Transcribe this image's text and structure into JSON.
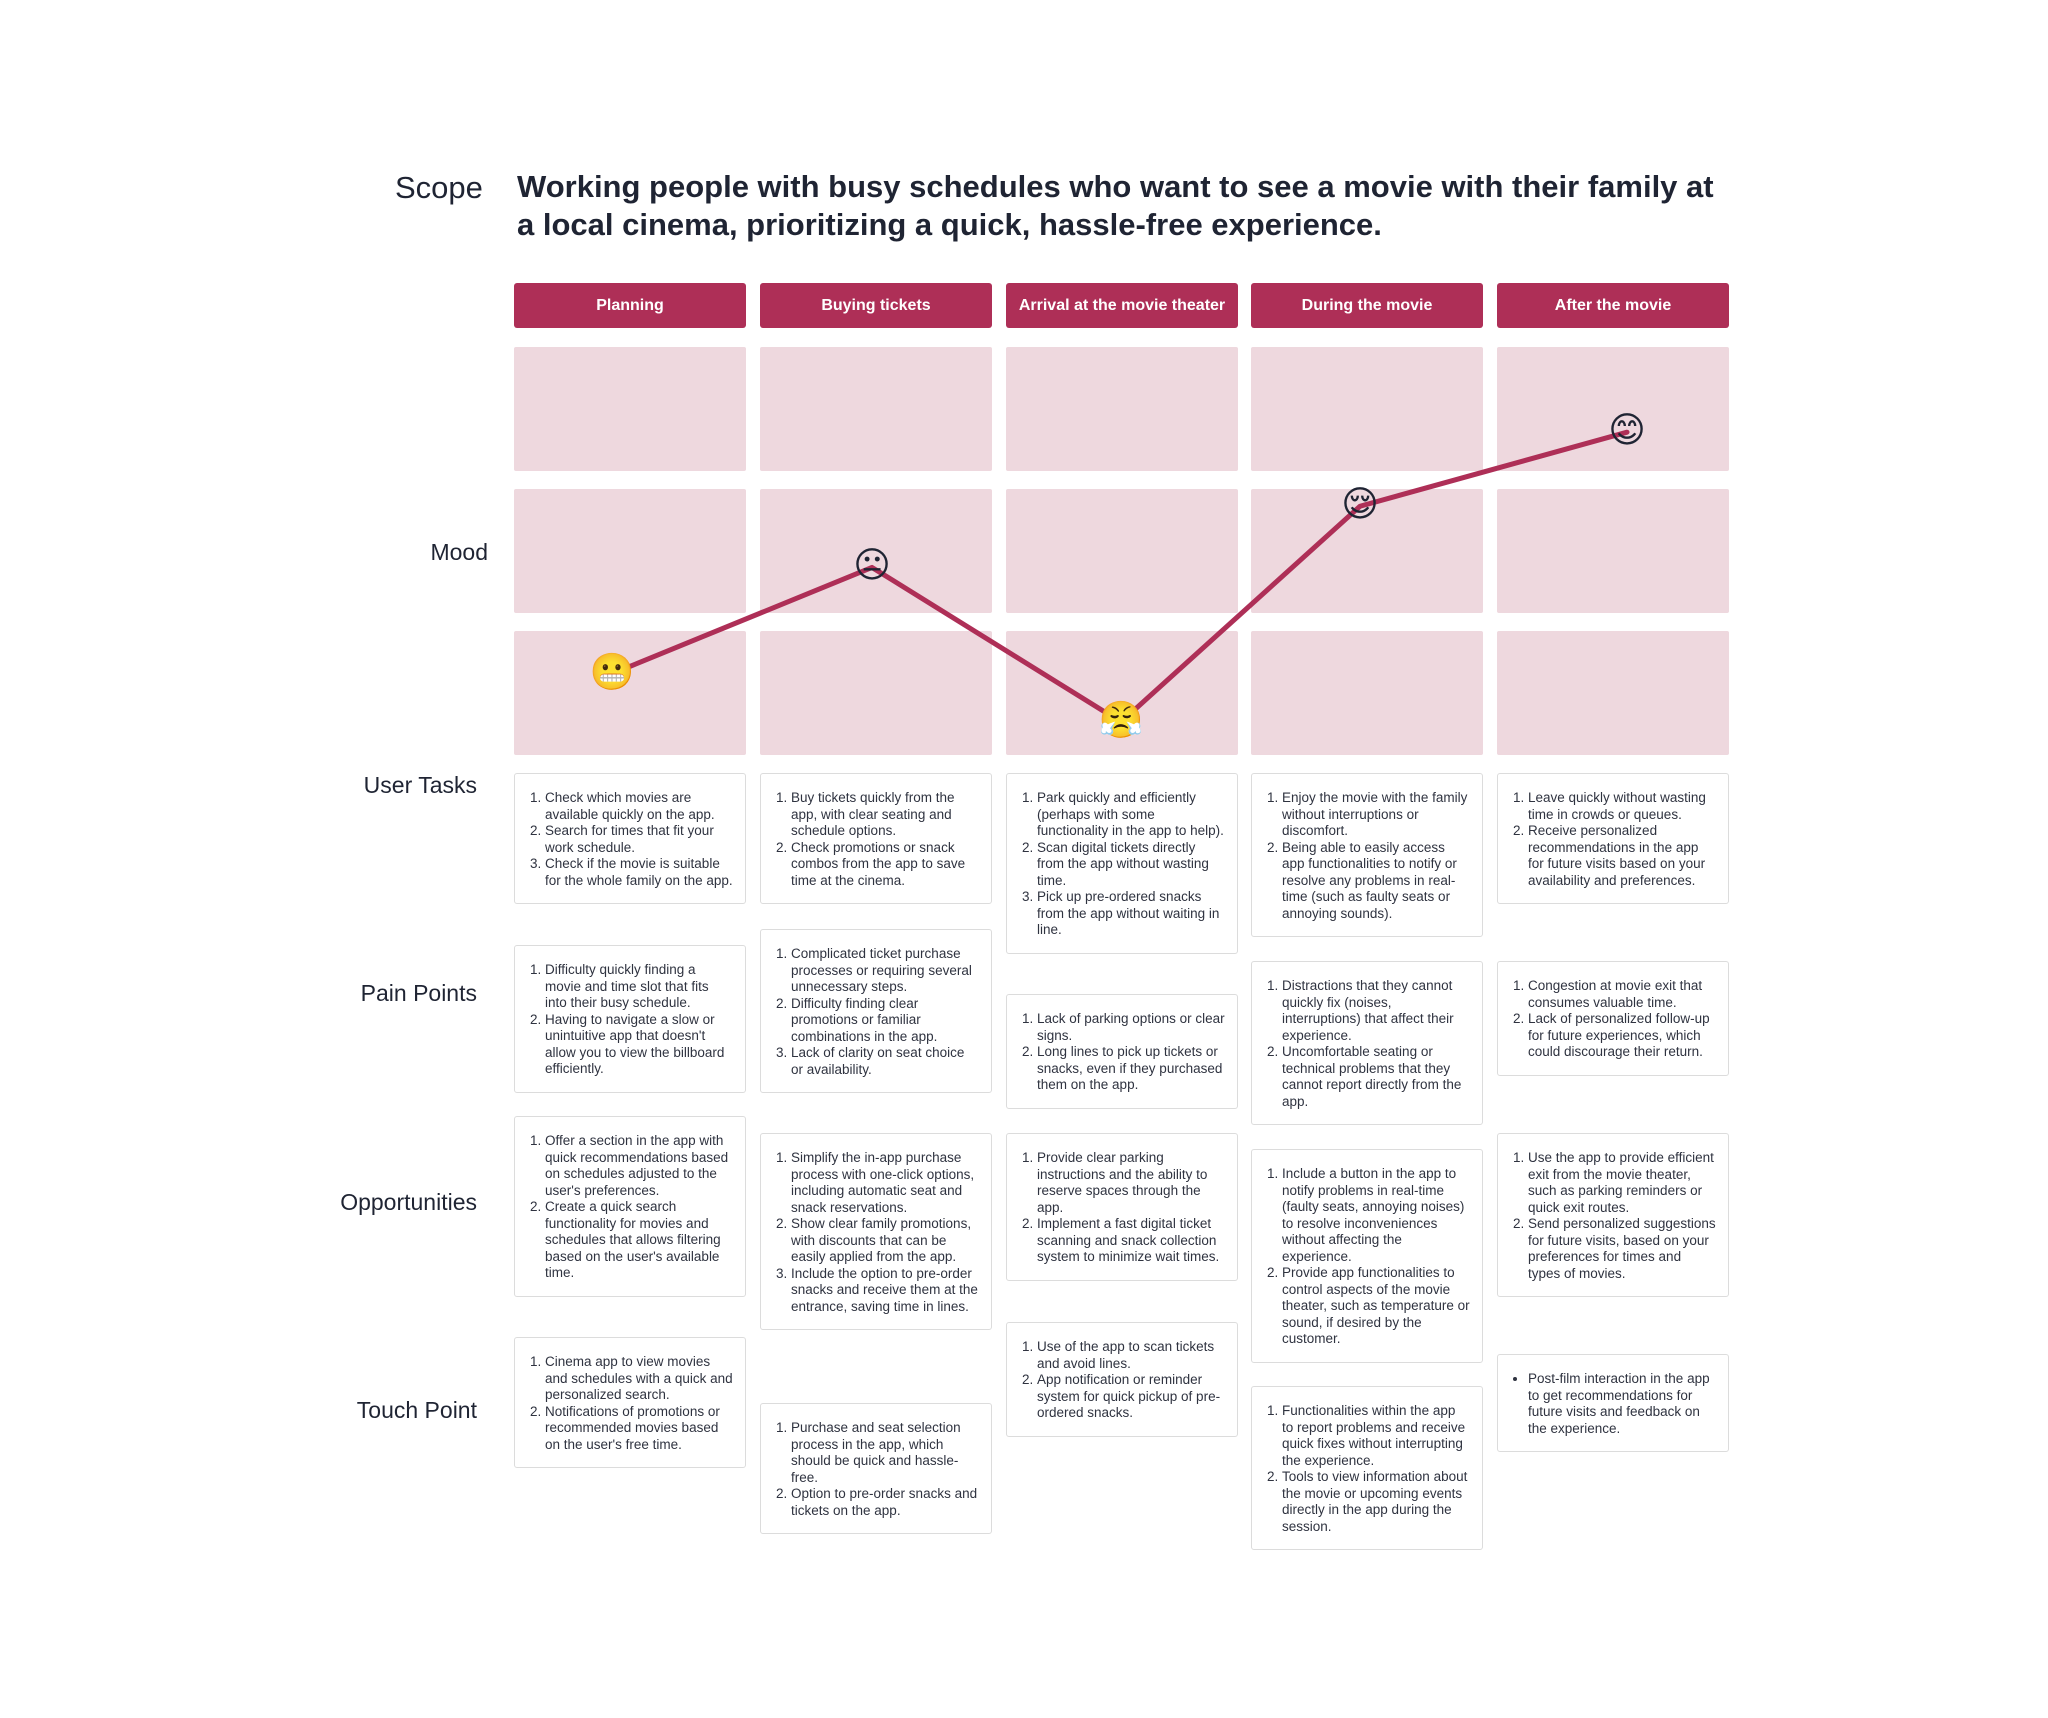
{
  "scope": {
    "label": "Scope",
    "text": "Working people with busy schedules who want to see a movie with their family at a local cinema, prioritizing a quick, hassle-free experience."
  },
  "row_labels": {
    "mood": "Mood",
    "user_tasks": "User Tasks",
    "pain_points": "Pain Points",
    "opportunities": "Opportunities",
    "touch_point": "Touch Point"
  },
  "colors": {
    "accent": "#ae2f57",
    "mood_cell": "#eed8de",
    "card_border": "#dcdcdc"
  },
  "stages": [
    {
      "title": "Planning",
      "mood": {
        "emoji": "😬",
        "name": "grimacing-face-icon",
        "level": 0.15
      },
      "user_tasks": [
        "Check which movies are available quickly on the app.",
        "Search for times that fit your work schedule.",
        "Check if the movie is suitable for the whole family on the app."
      ],
      "pain_points": [
        "Difficulty quickly finding a movie and time slot that fits into their busy schedule.",
        "Having to navigate a slow or unintuitive app that doesn't allow you to view the billboard efficiently."
      ],
      "opportunities": [
        "Offer a section in the app with quick recommendations based on schedules adjusted to the user's preferences.",
        "Create a quick search functionality for movies and schedules that allows filtering based on the user's available time."
      ],
      "touch_point": [
        "Cinema app to view movies and schedules with a quick and personalized search.",
        "Notifications of promotions or recommended movies based on the user's free time."
      ]
    },
    {
      "title": "Buying tickets",
      "mood": {
        "emoji": "😐",
        "name": "neutral-face-icon",
        "level": 0.48
      },
      "user_tasks": [
        "Buy tickets quickly from the app, with clear seating and schedule options.",
        "Check promotions or snack combos from the app to save time at the cinema."
      ],
      "pain_points": [
        "Complicated ticket purchase processes or requiring several unnecessary steps.",
        "Difficulty finding clear promotions or familiar combinations in the app.",
        "Lack of clarity on seat choice or availability."
      ],
      "opportunities": [
        "Simplify the in-app purchase process with one-click options, including automatic seat and snack reservations.",
        "Show clear family promotions, with discounts that can be easily applied from the app.",
        "Include the option to pre-order snacks and receive them at the entrance, saving time in lines."
      ],
      "touch_point": [
        "Purchase and seat selection process in the app, which should be quick and hassle-free.",
        "Option to pre-order snacks and tickets on the app."
      ]
    },
    {
      "title": "Arrival at the movie theater",
      "mood": {
        "emoji": "😤",
        "name": "angry-face-icon",
        "level": 0.0
      },
      "user_tasks": [
        "Park quickly and efficiently (perhaps with some functionality in the app to help).",
        "Scan digital tickets directly from the app without wasting time.",
        "Pick up pre-ordered snacks from the app without waiting in line."
      ],
      "pain_points": [
        "Lack of parking options or clear signs.",
        "Long lines to pick up tickets or snacks, even if they purchased them on the app."
      ],
      "opportunities": [
        "Provide clear parking instructions and the ability to reserve spaces through the app.",
        "Implement a fast digital ticket scanning and snack collection system to minimize wait times."
      ],
      "touch_point": [
        "Use of the app to scan tickets and avoid lines.",
        "App notification or reminder system for quick pickup of pre-ordered snacks."
      ]
    },
    {
      "title": "During the movie",
      "mood": {
        "emoji": "😌",
        "name": "relieved-face-icon",
        "level": 0.67
      },
      "user_tasks": [
        "Enjoy the movie with the family without interruptions or discomfort.",
        "Being able to easily access app functionalities to notify or resolve any problems in real-time (such as faulty seats or annoying sounds)."
      ],
      "pain_points": [
        "Distractions that they cannot quickly fix (noises, interruptions) that affect their experience.",
        "Uncomfortable seating or technical problems that they cannot report directly from the app."
      ],
      "opportunities": [
        "Include a button in the app to notify problems in real-time (faulty seats, annoying noises) to resolve inconveniences without affecting the experience.",
        "Provide app functionalities to control aspects of the movie theater, such as temperature or sound, if desired by the customer."
      ],
      "touch_point": [
        "Functionalities within the app to report problems and receive quick fixes without interrupting the experience.",
        "Tools to view information about the movie or upcoming events directly in the app during the session."
      ]
    },
    {
      "title": "After the movie",
      "mood": {
        "emoji": "😊",
        "name": "smiling-face-icon",
        "level": 0.9
      },
      "user_tasks": [
        "Leave quickly without wasting time in crowds or queues.",
        "Receive personalized recommendations in the app for future visits based on your availability and preferences."
      ],
      "pain_points": [
        "Congestion at movie exit that consumes valuable time.",
        "Lack of personalized follow-up for future experiences, which could discourage their return."
      ],
      "opportunities": [
        "Use the app to provide efficient exit from the movie theater, such as parking reminders or quick exit routes.",
        "Send personalized suggestions for future visits, based on your preferences for times and types of movies."
      ],
      "touch_point": [
        "Post-film interaction in the app to get recommendations for future visits and feedback on the experience."
      ]
    }
  ]
}
